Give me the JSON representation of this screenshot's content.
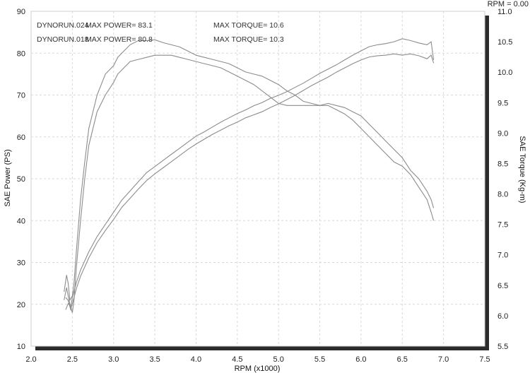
{
  "chart_data": {
    "type": "line",
    "xlabel": "RPM (x1000)",
    "ylabel_left": "SAE Power (PS)",
    "ylabel_right": "SAE Torque (Kg-m)",
    "corner_label": "RPM = 0.00",
    "xlim": [
      2.0,
      7.5
    ],
    "ylim_left": [
      10,
      90
    ],
    "ylim_right": [
      5.5,
      11.0
    ],
    "x_ticks": [
      "2.0",
      "2.5",
      "3.0",
      "3.5",
      "4.0",
      "4.5",
      "5.0",
      "5.5",
      "6.0",
      "6.5",
      "7.0",
      "7.5"
    ],
    "y_left_ticks": [
      "10",
      "20",
      "30",
      "40",
      "50",
      "60",
      "70",
      "80",
      "90"
    ],
    "y_right_ticks": [
      "5.5",
      "6.0",
      "6.5",
      "7.0",
      "7.5",
      "8.0",
      "8.5",
      "9.0",
      "9.5",
      "10.0",
      "10.5",
      "11.0"
    ],
    "grid": true,
    "header": [
      {
        "run": "DYNORUN.024",
        "power": "MAX POWER= 83.1",
        "torque": "MAX TORQUE= 10.6"
      },
      {
        "run": "DYNORUN.018",
        "power": "MAX POWER= 80.8",
        "torque": "MAX TORQUE= 10.3"
      }
    ],
    "series": [
      {
        "axis": "right",
        "x": [
          2.42,
          2.45,
          2.48,
          2.5,
          2.55,
          2.6,
          2.7,
          2.8,
          2.9,
          3.0,
          3.05,
          3.1,
          3.2,
          3.3,
          3.4,
          3.5,
          3.6,
          3.7,
          3.8,
          3.9,
          4.0,
          4.1,
          4.2,
          4.3,
          4.4,
          4.5,
          4.6,
          4.7,
          4.8,
          4.9,
          5.0,
          5.1,
          5.2,
          5.3,
          5.4,
          5.5,
          5.6,
          5.7,
          5.8,
          5.9,
          6.0,
          6.1,
          6.2,
          6.3,
          6.4,
          6.5,
          6.6,
          6.7,
          6.8,
          6.85,
          6.88
        ],
        "y": [
          6.1,
          6.2,
          6.15,
          6.3,
          6.55,
          6.75,
          7.05,
          7.3,
          7.5,
          7.7,
          7.8,
          7.9,
          8.05,
          8.2,
          8.35,
          8.45,
          8.55,
          8.65,
          8.75,
          8.85,
          8.95,
          9.02,
          9.1,
          9.18,
          9.25,
          9.32,
          9.38,
          9.45,
          9.5,
          9.57,
          9.62,
          9.68,
          9.75,
          9.82,
          9.9,
          9.98,
          10.05,
          10.12,
          10.2,
          10.28,
          10.35,
          10.42,
          10.45,
          10.47,
          10.5,
          10.55,
          10.52,
          10.48,
          10.45,
          10.5,
          10.2
        ]
      },
      {
        "axis": "right",
        "x": [
          2.42,
          2.45,
          2.48,
          2.5,
          2.55,
          2.6,
          2.7,
          2.8,
          2.9,
          3.0,
          3.05,
          3.1,
          3.2,
          3.3,
          3.4,
          3.5,
          3.6,
          3.7,
          3.8,
          3.9,
          4.0,
          4.1,
          4.2,
          4.3,
          4.4,
          4.5,
          4.6,
          4.7,
          4.8,
          4.9,
          5.0,
          5.1,
          5.2,
          5.3,
          5.4,
          5.5,
          5.6,
          5.7,
          5.8,
          5.9,
          6.0,
          6.1,
          6.2,
          6.3,
          6.4,
          6.5,
          6.6,
          6.7,
          6.8,
          6.85,
          6.88
        ],
        "y": [
          6.3,
          6.25,
          6.1,
          6.2,
          6.45,
          6.65,
          6.95,
          7.2,
          7.4,
          7.58,
          7.68,
          7.78,
          7.93,
          8.08,
          8.22,
          8.33,
          8.43,
          8.53,
          8.63,
          8.73,
          8.82,
          8.9,
          8.98,
          9.05,
          9.12,
          9.18,
          9.25,
          9.3,
          9.35,
          9.42,
          9.48,
          9.55,
          9.62,
          9.7,
          9.78,
          9.85,
          9.92,
          10.0,
          10.07,
          10.14,
          10.2,
          10.25,
          10.27,
          10.28,
          10.3,
          10.28,
          10.3,
          10.27,
          10.22,
          10.28,
          10.15
        ]
      },
      {
        "axis": "left",
        "x": [
          2.4,
          2.43,
          2.45,
          2.47,
          2.5,
          2.52,
          2.55,
          2.6,
          2.65,
          2.7,
          2.8,
          2.9,
          3.0,
          3.05,
          3.1,
          3.2,
          3.3,
          3.4,
          3.5,
          3.6,
          3.7,
          3.8,
          3.9,
          4.0,
          4.1,
          4.2,
          4.3,
          4.4,
          4.5,
          4.6,
          4.7,
          4.8,
          4.9,
          5.0,
          5.1,
          5.2,
          5.3,
          5.4,
          5.5,
          5.6,
          5.7,
          5.8,
          5.9,
          6.0,
          6.1,
          6.2,
          6.3,
          6.4,
          6.5,
          6.6,
          6.7,
          6.8,
          6.85,
          6.88
        ],
        "y": [
          23,
          27,
          25,
          21,
          22,
          25,
          33,
          45,
          54,
          62,
          70,
          75,
          77,
          79,
          80,
          82,
          83,
          83,
          83.2,
          82.5,
          82,
          81.5,
          80.5,
          79.5,
          79,
          78.5,
          78,
          77.5,
          76.5,
          75.5,
          75,
          74.5,
          73.5,
          72.5,
          71,
          70,
          68.5,
          68,
          67.5,
          67.5,
          66.5,
          65.5,
          64,
          62,
          60,
          58,
          56,
          54,
          53,
          51,
          48,
          45,
          42,
          40
        ]
      },
      {
        "axis": "left",
        "x": [
          2.4,
          2.43,
          2.45,
          2.47,
          2.5,
          2.52,
          2.55,
          2.6,
          2.65,
          2.7,
          2.8,
          2.9,
          3.0,
          3.05,
          3.1,
          3.2,
          3.3,
          3.4,
          3.5,
          3.6,
          3.7,
          3.8,
          3.9,
          4.0,
          4.1,
          4.2,
          4.3,
          4.4,
          4.5,
          4.6,
          4.7,
          4.8,
          4.9,
          5.0,
          5.1,
          5.2,
          5.3,
          5.4,
          5.5,
          5.6,
          5.7,
          5.8,
          5.9,
          6.0,
          6.1,
          6.2,
          6.3,
          6.4,
          6.5,
          6.6,
          6.7,
          6.8,
          6.85,
          6.88
        ],
        "y": [
          21,
          24,
          22,
          20,
          18,
          21,
          29,
          40,
          50,
          58,
          66,
          70,
          73,
          75,
          76,
          78,
          78.5,
          79,
          79.5,
          79.5,
          79.5,
          79,
          78.5,
          78,
          77.5,
          77,
          76.5,
          75.5,
          74.5,
          73.5,
          72.5,
          71,
          69.5,
          68,
          67.5,
          67.5,
          67.5,
          67.5,
          67.5,
          68,
          67.5,
          67,
          66,
          65,
          63,
          61,
          59,
          57,
          55,
          52,
          50,
          47,
          45,
          43
        ]
      }
    ]
  }
}
